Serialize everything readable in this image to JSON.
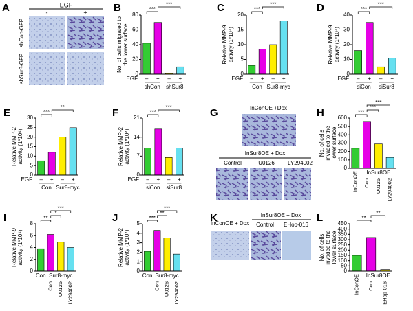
{
  "images": [
    {
      "panel": "A",
      "title": "EGF",
      "columns": [
        "-",
        "+"
      ],
      "rows": [
        "shCon-GFP",
        "shSur8-GFP"
      ]
    },
    {
      "panel": "G",
      "top_label": "InConOE +Dox",
      "bottom_label": "InSur8OE + Dox",
      "columns": [
        "Control",
        "U0126",
        "LY294002"
      ]
    },
    {
      "panel": "K",
      "left_label": "InConOE + Dox",
      "right_label": "InSur8OE + Dox",
      "columns": [
        "Control",
        "EHop-016"
      ]
    }
  ],
  "chart_data": [
    {
      "type": "bar",
      "panel": "B",
      "ylabel": [
        "No. of cells migrated to",
        "the lower surface"
      ],
      "condition": "EGF",
      "categories": [
        "–",
        "+",
        "–",
        "+"
      ],
      "groups": [
        "shCon",
        "shSur8"
      ],
      "values": [
        42,
        70,
        1,
        10
      ],
      "colors": [
        "#33cc33",
        "#e600e6",
        "#ffee00",
        "#66e0f0"
      ],
      "ylim": [
        0,
        80
      ],
      "yticks": [
        0,
        20,
        40,
        60,
        80
      ],
      "significance": [
        "***",
        "***"
      ]
    },
    {
      "type": "bar",
      "panel": "C",
      "ylabel": [
        "Relative MMP-9",
        "activity (1*10⁴)"
      ],
      "condition": "EGF",
      "categories": [
        "–",
        "+",
        "–",
        "+"
      ],
      "groups": [
        "Con",
        "Sur8-myc"
      ],
      "values": [
        3,
        8.5,
        10,
        18
      ],
      "colors": [
        "#33cc33",
        "#e600e6",
        "#ffee00",
        "#66e0f0"
      ],
      "ylim": [
        0,
        20
      ],
      "yticks": [
        0,
        5,
        10,
        15,
        20
      ],
      "significance": [
        "***",
        "***"
      ]
    },
    {
      "type": "bar",
      "panel": "D",
      "ylabel": [
        "Relative MMP-9",
        "activity (1*10⁴)"
      ],
      "condition": "EGF",
      "categories": [
        "–",
        "+",
        "–",
        "+"
      ],
      "groups": [
        "siCon",
        "siSur8"
      ],
      "values": [
        16,
        35,
        5,
        11
      ],
      "colors": [
        "#33cc33",
        "#e600e6",
        "#ffee00",
        "#66e0f0"
      ],
      "ylim": [
        0,
        40
      ],
      "yticks": [
        0,
        10,
        20,
        30,
        40
      ],
      "significance": [
        "***",
        "***"
      ]
    },
    {
      "type": "bar",
      "panel": "E",
      "ylabel": [
        "Relative MMP-2",
        "activity (1*10⁴)"
      ],
      "condition": "EGF",
      "categories": [
        "–",
        "+",
        "–",
        "+"
      ],
      "groups": [
        "Con",
        "Sur8-myc"
      ],
      "values": [
        7.5,
        12,
        20,
        25
      ],
      "colors": [
        "#33cc33",
        "#e600e6",
        "#ffee00",
        "#66e0f0"
      ],
      "ylim": [
        0,
        30
      ],
      "yticks": [
        0,
        5,
        10,
        15,
        20,
        25,
        30
      ],
      "significance": [
        "***",
        "**"
      ]
    },
    {
      "type": "bar",
      "panel": "F",
      "ylabel": [
        "Relative MMP-2",
        "activity (1*10⁴)"
      ],
      "condition": "EGF",
      "categories": [
        "–",
        "+",
        "–",
        "+"
      ],
      "groups": [
        "siCon",
        "siSur8"
      ],
      "values": [
        10,
        17,
        6.5,
        10
      ],
      "colors": [
        "#33cc33",
        "#e600e6",
        "#ffee00",
        "#66e0f0"
      ],
      "ylim": [
        0,
        21
      ],
      "yticks": [
        0,
        7,
        14,
        21
      ],
      "significance": [
        "***",
        "***"
      ]
    },
    {
      "type": "bar",
      "panel": "H",
      "ylabel": [
        "No. of cells",
        "invaded to the",
        "lower surface"
      ],
      "categories": [
        "InConOE",
        "Con",
        "U0126",
        "LY294002"
      ],
      "groups": [
        "InSur8OE"
      ],
      "values": [
        240,
        560,
        290,
        130
      ],
      "colors": [
        "#33cc33",
        "#e600e6",
        "#ffee00",
        "#66e0f0"
      ],
      "ylim": [
        0,
        600
      ],
      "yticks": [
        0,
        100,
        200,
        300,
        400,
        500,
        600
      ],
      "significance": [
        "***",
        "***",
        "***"
      ]
    },
    {
      "type": "bar",
      "panel": "I",
      "ylabel": [
        "Relative MMP-9",
        "activity (1*10⁴)"
      ],
      "categories": [
        null,
        "Con",
        "U0126",
        "LY294002"
      ],
      "groups": [
        "Con",
        "Sur8-myc"
      ],
      "values": [
        3.8,
        6.2,
        4.9,
        4.0
      ],
      "colors": [
        "#33cc33",
        "#e600e6",
        "#ffee00",
        "#66e0f0"
      ],
      "ylim": [
        0,
        8
      ],
      "yticks": [
        0,
        2,
        4,
        6,
        8
      ],
      "significance": [
        "**",
        "*",
        "***"
      ]
    },
    {
      "type": "bar",
      "panel": "J",
      "ylabel": [
        "Relative MMP-2",
        "activity (1*10⁴)"
      ],
      "categories": [
        null,
        "Con",
        "U0126",
        "LY294002"
      ],
      "groups": [
        "Con",
        "Sur8-myc"
      ],
      "values": [
        2.1,
        4.3,
        3.5,
        1.8
      ],
      "colors": [
        "#33cc33",
        "#e600e6",
        "#ffee00",
        "#66e0f0"
      ],
      "ylim": [
        0,
        5
      ],
      "yticks": [
        0,
        1,
        2,
        3,
        4,
        5
      ],
      "significance": [
        "***",
        "**",
        "***"
      ]
    },
    {
      "type": "bar",
      "panel": "L",
      "ylabel": [
        "No. of cells",
        "invaded to the",
        "lower surface"
      ],
      "categories": [
        "InConOE",
        "Con",
        "EHop-016"
      ],
      "groups": [
        "InSur8OE"
      ],
      "values": [
        150,
        320,
        15
      ],
      "colors": [
        "#33cc33",
        "#e600e6",
        "#ffee00"
      ],
      "ylim": [
        0,
        450
      ],
      "yticks": [
        0,
        50,
        100,
        150,
        200,
        250,
        300,
        350,
        400,
        450
      ],
      "significance": [
        "**",
        "**"
      ]
    }
  ]
}
